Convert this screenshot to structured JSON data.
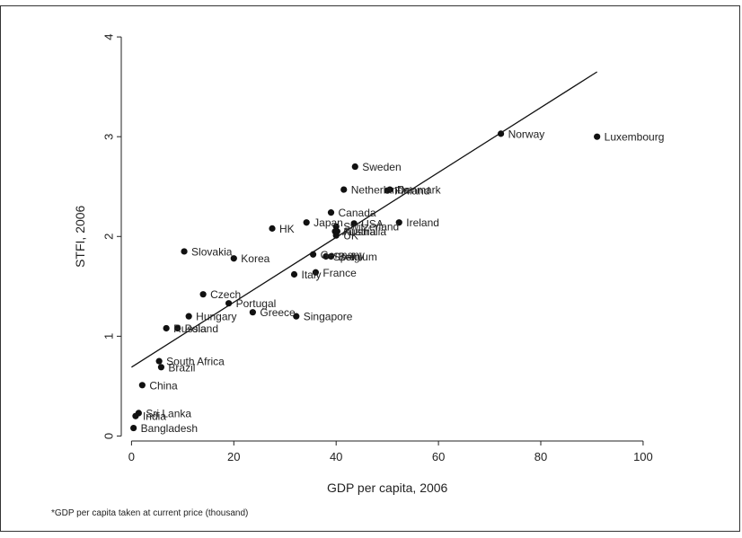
{
  "footnote": "*GDP per capita taken at current price (thousand)",
  "chart_data": {
    "type": "scatter",
    "xlabel": "GDP per capita, 2006",
    "ylabel": "STFI, 2006",
    "xlim": [
      -2,
      103
    ],
    "ylim": [
      -0.05,
      4.1
    ],
    "xticks": [
      0,
      20,
      40,
      60,
      80,
      100
    ],
    "yticks": [
      0,
      1,
      2,
      3,
      4
    ],
    "grid": false,
    "points": [
      {
        "label": "Luxembourg",
        "x": 91.0,
        "y": 3.0
      },
      {
        "label": "Norway",
        "x": 72.2,
        "y": 3.03
      },
      {
        "label": "Sweden",
        "x": 43.7,
        "y": 2.7
      },
      {
        "label": "Netherlands",
        "x": 41.5,
        "y": 2.47
      },
      {
        "label": "Denmark",
        "x": 50.5,
        "y": 2.47
      },
      {
        "label": "Finland",
        "x": 50.0,
        "y": 2.46
      },
      {
        "label": "Canada",
        "x": 39.0,
        "y": 2.24
      },
      {
        "label": "Japan",
        "x": 34.2,
        "y": 2.14
      },
      {
        "label": "USA",
        "x": 43.5,
        "y": 2.13
      },
      {
        "label": "Switzerland",
        "x": 40.0,
        "y": 2.1
      },
      {
        "label": "Austria",
        "x": 39.8,
        "y": 2.05
      },
      {
        "label": "Australia",
        "x": 40.2,
        "y": 2.05
      },
      {
        "label": "UK",
        "x": 40.0,
        "y": 2.01
      },
      {
        "label": "Ireland",
        "x": 52.3,
        "y": 2.14
      },
      {
        "label": "HK",
        "x": 27.5,
        "y": 2.08
      },
      {
        "label": "Slovakia",
        "x": 10.3,
        "y": 1.85
      },
      {
        "label": "Korea",
        "x": 20.0,
        "y": 1.78
      },
      {
        "label": "Germany",
        "x": 35.5,
        "y": 1.82
      },
      {
        "label": "Spain",
        "x": 38.0,
        "y": 1.8
      },
      {
        "label": "Belgium",
        "x": 39.0,
        "y": 1.8
      },
      {
        "label": "France",
        "x": 36.0,
        "y": 1.64
      },
      {
        "label": "Italy",
        "x": 31.8,
        "y": 1.62
      },
      {
        "label": "Czech",
        "x": 14.0,
        "y": 1.42
      },
      {
        "label": "Portugal",
        "x": 19.0,
        "y": 1.33
      },
      {
        "label": "Hungary",
        "x": 11.2,
        "y": 1.2
      },
      {
        "label": "Greece",
        "x": 23.7,
        "y": 1.24
      },
      {
        "label": "Singapore",
        "x": 32.2,
        "y": 1.2
      },
      {
        "label": "Russia",
        "x": 6.8,
        "y": 1.08
      },
      {
        "label": "Poland",
        "x": 9.0,
        "y": 1.08
      },
      {
        "label": "South Africa",
        "x": 5.4,
        "y": 0.75
      },
      {
        "label": "Brazil",
        "x": 5.8,
        "y": 0.69
      },
      {
        "label": "China",
        "x": 2.1,
        "y": 0.51
      },
      {
        "label": "Sri Lanka",
        "x": 1.4,
        "y": 0.23
      },
      {
        "label": "India",
        "x": 0.8,
        "y": 0.2
      },
      {
        "label": "Bangladesh",
        "x": 0.4,
        "y": 0.08
      }
    ],
    "fit_line": {
      "x": [
        0,
        91
      ],
      "y": [
        0.69,
        3.65
      ]
    }
  }
}
